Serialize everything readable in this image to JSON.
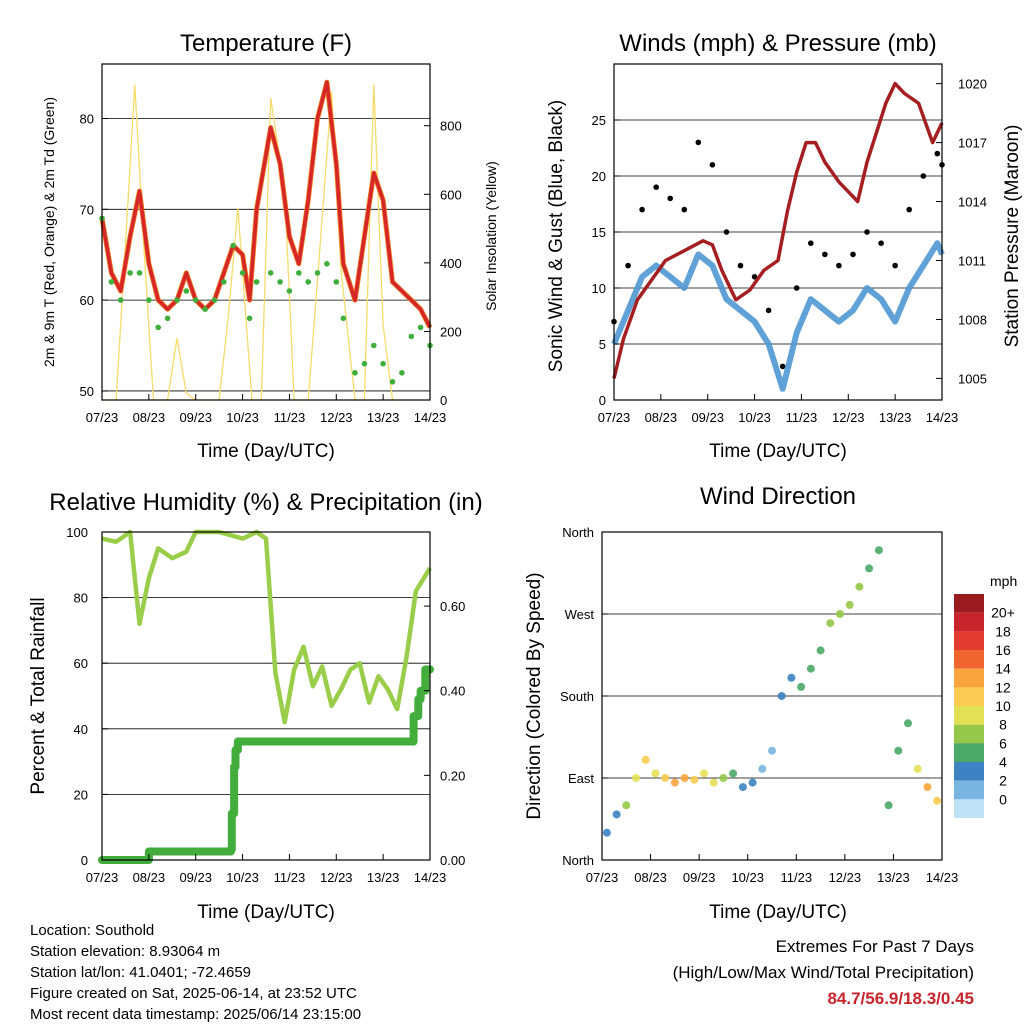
{
  "colors": {
    "temp2m": "#d62728",
    "temp9m": "#f07f20",
    "dewpoint": "#3fae3c",
    "solar": "#f5dc6a",
    "wind": "#4f97d3",
    "gust": "#000000",
    "pressure": "#a41e22",
    "rh": "#9acd4a",
    "rain": "#43ad3c",
    "extremes": "#c8242b"
  },
  "x_ticks": [
    "07/23",
    "08/23",
    "09/23",
    "10/23",
    "11/23",
    "12/23",
    "13/23",
    "14/23"
  ],
  "panels": {
    "temperature": {
      "title": "Temperature (F)",
      "xlabel": "Time (Day/UTC)",
      "ylabel_left": "2m & 9m T (Red, Orange) & 2m Td (Green)",
      "ylabel_right": "Solar Insolation (Yellow)",
      "left_ticks": [
        "50",
        "60",
        "70",
        "80"
      ],
      "right_ticks": [
        "0",
        "200",
        "400",
        "600",
        "800"
      ]
    },
    "winds": {
      "title": "Winds (mph) & Pressure (mb)",
      "xlabel": "Time (Day/UTC)",
      "ylabel_left": "Sonic Wind & Gust (Blue, Black)",
      "ylabel_right": "Station Pressure (Maroon)",
      "left_ticks": [
        "0",
        "5",
        "10",
        "15",
        "20",
        "25"
      ],
      "right_ticks": [
        "1005",
        "1008",
        "1011",
        "1014",
        "1017",
        "1020"
      ]
    },
    "humidity": {
      "title": "Relative Humidity (%) & Precipitation (in)",
      "xlabel": "Time (Day/UTC)",
      "ylabel_left": "Percent & Total Rainfall",
      "left_ticks": [
        "0",
        "20",
        "40",
        "60",
        "80",
        "100"
      ],
      "right_ticks": [
        "0.00",
        "0.20",
        "0.40",
        "0.60"
      ]
    },
    "direction": {
      "title": "Wind Direction",
      "xlabel": "Time (Day/UTC)",
      "ylabel_left": "Direction (Colored By Speed)",
      "left_ticks": [
        "North",
        "East",
        "South",
        "West",
        "North"
      ],
      "legend_title": "mph",
      "legend_labels": [
        "20+",
        "18",
        "16",
        "14",
        "12",
        "10",
        "8",
        "6",
        "4",
        "2",
        "0"
      ],
      "legend_colors": [
        "#9b1c1f",
        "#c8242b",
        "#e13c2f",
        "#f0642e",
        "#f9a43c",
        "#f9cb50",
        "#e4e055",
        "#95c849",
        "#4aa868",
        "#3d82c2",
        "#79b5e1",
        "#bfe2f7"
      ]
    }
  },
  "chart_data": [
    {
      "type": "line",
      "title": "Temperature (F)",
      "xlabel": "Time (Day/UTC)",
      "ylabel": "2m & 9m T (Red, Orange) & 2m Td (Green)",
      "y2label": "Solar Insolation (Yellow)",
      "xlim": [
        7,
        14
      ],
      "ylim": [
        49,
        86
      ],
      "y2lim": [
        0,
        980
      ],
      "series": [
        {
          "name": "2m T",
          "axis": "left",
          "x": [
            7.0,
            7.2,
            7.4,
            7.6,
            7.8,
            8.0,
            8.2,
            8.4,
            8.6,
            8.8,
            9.0,
            9.2,
            9.4,
            9.6,
            9.8,
            10.0,
            10.15,
            10.3,
            10.6,
            10.8,
            11.0,
            11.2,
            11.4,
            11.6,
            11.8,
            12.0,
            12.15,
            12.4,
            12.6,
            12.8,
            13.0,
            13.2,
            13.4,
            13.6,
            13.8,
            14.0
          ],
          "y": [
            69,
            63,
            61,
            67,
            72,
            64,
            60,
            59,
            60,
            63,
            60,
            59,
            60,
            63,
            66,
            65,
            60,
            70,
            79,
            75,
            67,
            64,
            71,
            80,
            84,
            75,
            64,
            60,
            67,
            74,
            71,
            62,
            61,
            60,
            59,
            57
          ]
        },
        {
          "name": "Solar",
          "axis": "right",
          "x": [
            7.0,
            7.3,
            7.5,
            7.7,
            7.9,
            8.1,
            8.4,
            8.6,
            8.8,
            9.0,
            9.5,
            9.7,
            9.9,
            10.2,
            10.4,
            10.6,
            10.9,
            11.1,
            11.4,
            11.6,
            11.9,
            12.1,
            12.4,
            12.6,
            12.8,
            13.0,
            13.2,
            13.4
          ],
          "y": [
            0,
            0,
            450,
            920,
            430,
            0,
            0,
            180,
            20,
            0,
            0,
            250,
            560,
            0,
            0,
            880,
            610,
            0,
            0,
            350,
            900,
            380,
            0,
            0,
            920,
            220,
            0,
            0
          ]
        },
        {
          "name": "2m Td",
          "axis": "left",
          "x": [
            7.0,
            7.2,
            7.4,
            7.6,
            7.8,
            8.0,
            8.2,
            8.4,
            8.6,
            8.8,
            9.0,
            9.2,
            9.4,
            9.6,
            9.8,
            10.0,
            10.15,
            10.3,
            10.6,
            10.8,
            11.0,
            11.2,
            11.4,
            11.6,
            11.8,
            12.0,
            12.15,
            12.4,
            12.6,
            12.8,
            13.0,
            13.2,
            13.4,
            13.6,
            13.8,
            14.0
          ],
          "y": [
            69,
            62,
            60,
            63,
            63,
            60,
            57,
            58,
            60,
            61,
            60,
            59,
            60,
            62,
            66,
            63,
            58,
            62,
            63,
            62,
            61,
            63,
            62,
            63,
            64,
            62,
            58,
            52,
            53,
            55,
            53,
            51,
            52,
            56,
            57,
            55
          ]
        }
      ]
    },
    {
      "type": "line",
      "title": "Winds (mph) & Pressure (mb)",
      "xlabel": "Time (Day/UTC)",
      "ylabel": "Sonic Wind & Gust (Blue, Black)",
      "y2label": "Station Pressure (Maroon)",
      "xlim": [
        7,
        14
      ],
      "ylim": [
        0,
        30
      ],
      "y2lim": [
        1003.9,
        1021
      ],
      "series": [
        {
          "name": "Sonic Wind",
          "axis": "left",
          "x": [
            7.0,
            7.3,
            7.6,
            7.9,
            8.2,
            8.5,
            8.8,
            9.1,
            9.4,
            9.7,
            10.0,
            10.3,
            10.6,
            10.9,
            11.2,
            11.5,
            11.8,
            12.1,
            12.4,
            12.7,
            13.0,
            13.3,
            13.6,
            13.9,
            14.0
          ],
          "y": [
            5,
            8,
            11,
            12,
            11,
            10,
            13,
            12,
            9,
            8,
            7,
            5,
            1,
            6,
            9,
            8,
            7,
            8,
            10,
            9,
            7,
            10,
            12,
            14,
            13
          ]
        },
        {
          "name": "Gust",
          "axis": "left",
          "x": [
            7.0,
            7.3,
            7.6,
            7.9,
            8.2,
            8.5,
            8.8,
            9.1,
            9.4,
            9.7,
            10.0,
            10.3,
            10.6,
            10.9,
            11.2,
            11.5,
            11.8,
            12.1,
            12.4,
            12.7,
            13.0,
            13.3,
            13.6,
            13.9,
            14.0
          ],
          "y": [
            7,
            12,
            17,
            19,
            18,
            17,
            23,
            21,
            15,
            12,
            11,
            8,
            3,
            10,
            14,
            13,
            12,
            13,
            15,
            14,
            12,
            17,
            20,
            22,
            21
          ]
        },
        {
          "name": "Station Pressure",
          "axis": "right",
          "x": [
            7.0,
            7.2,
            7.5,
            7.8,
            8.1,
            8.5,
            8.9,
            9.1,
            9.3,
            9.6,
            9.9,
            10.2,
            10.5,
            10.7,
            10.9,
            11.1,
            11.3,
            11.5,
            11.8,
            12.0,
            12.2,
            12.4,
            12.6,
            12.8,
            13.0,
            13.2,
            13.5,
            13.8,
            14.0
          ],
          "y": [
            1005,
            1007,
            1009,
            1010,
            1011,
            1011.5,
            1012,
            1011.8,
            1010.5,
            1009,
            1009.5,
            1010.5,
            1011,
            1013.5,
            1015.5,
            1017,
            1017,
            1016,
            1015,
            1014.5,
            1014,
            1016,
            1017.5,
            1019,
            1020,
            1019.5,
            1019,
            1017,
            1018
          ]
        }
      ]
    },
    {
      "type": "line",
      "title": "Relative Humidity (%) & Precipitation (in)",
      "xlabel": "Time (Day/UTC)",
      "ylabel": "Percent & Total Rainfall",
      "xlim": [
        7,
        14
      ],
      "ylim": [
        0,
        100
      ],
      "y2lim": [
        0,
        0.775
      ],
      "series": [
        {
          "name": "RH",
          "axis": "left",
          "x": [
            7.0,
            7.3,
            7.6,
            7.8,
            8.0,
            8.2,
            8.5,
            8.8,
            9.0,
            9.5,
            10.0,
            10.3,
            10.5,
            10.7,
            10.9,
            11.1,
            11.3,
            11.5,
            11.7,
            11.9,
            12.1,
            12.3,
            12.5,
            12.7,
            12.9,
            13.1,
            13.3,
            13.5,
            13.7,
            14.0
          ],
          "y": [
            98,
            97,
            100,
            72,
            86,
            95,
            92,
            94,
            100,
            100,
            98,
            100,
            98,
            57,
            42,
            58,
            65,
            53,
            59,
            47,
            52,
            58,
            60,
            48,
            56,
            52,
            46,
            62,
            82,
            89
          ]
        },
        {
          "name": "Total Rainfall",
          "axis": "right",
          "x": [
            7.0,
            7.8,
            8.0,
            9.6,
            9.75,
            9.77,
            9.82,
            9.85,
            9.9,
            10.0,
            13.6,
            13.65,
            13.75,
            13.8,
            13.9,
            14.0
          ],
          "y": [
            0.0,
            0.0,
            0.02,
            0.02,
            0.025,
            0.11,
            0.22,
            0.26,
            0.28,
            0.28,
            0.28,
            0.34,
            0.38,
            0.4,
            0.45,
            0.45
          ]
        }
      ]
    },
    {
      "type": "scatter",
      "title": "Wind Direction",
      "xlabel": "Time (Day/UTC)",
      "ylabel": "Direction (Colored By Speed)",
      "xlim": [
        7,
        14
      ],
      "y_categories": [
        "North",
        "East",
        "South",
        "West",
        "North"
      ],
      "ylim": [
        0,
        360
      ],
      "x": [
        7.1,
        7.3,
        7.5,
        7.7,
        7.9,
        8.1,
        8.3,
        8.5,
        8.7,
        8.9,
        9.1,
        9.3,
        9.5,
        9.7,
        9.9,
        10.1,
        10.3,
        10.5,
        10.7,
        10.9,
        11.1,
        11.3,
        11.5,
        11.7,
        11.9,
        12.1,
        12.3,
        12.5,
        12.7,
        12.9,
        13.1,
        13.3,
        13.5,
        13.7,
        13.9
      ],
      "y": [
        30,
        50,
        60,
        90,
        110,
        95,
        90,
        85,
        90,
        88,
        95,
        85,
        90,
        95,
        80,
        85,
        100,
        120,
        180,
        200,
        190,
        210,
        230,
        260,
        270,
        280,
        300,
        320,
        340,
        60,
        120,
        150,
        100,
        80,
        65
      ],
      "speed": [
        3,
        4,
        7,
        9,
        11,
        10,
        12,
        14,
        13,
        11,
        10,
        9,
        8,
        6,
        4,
        3,
        2,
        2,
        3,
        4,
        5,
        5,
        6,
        7,
        7,
        8,
        7,
        6,
        5,
        5,
        6,
        5,
        9,
        14,
        12
      ]
    }
  ],
  "footer": {
    "location": "Location: Southold",
    "elevation": "Station elevation: 8.93064 m",
    "latlon": "Station lat/lon: 41.0401; -72.4659",
    "created": "Figure created on Sat, 2025-06-14, at 23:52 UTC",
    "recent": "Most recent data timestamp: 2025/06/14 23:15:00"
  },
  "extremes": {
    "line1": "Extremes For Past 7 Days",
    "line2": "(High/Low/Max Wind/Total Precipitation)",
    "values": "84.7/56.9/18.3/0.45"
  }
}
